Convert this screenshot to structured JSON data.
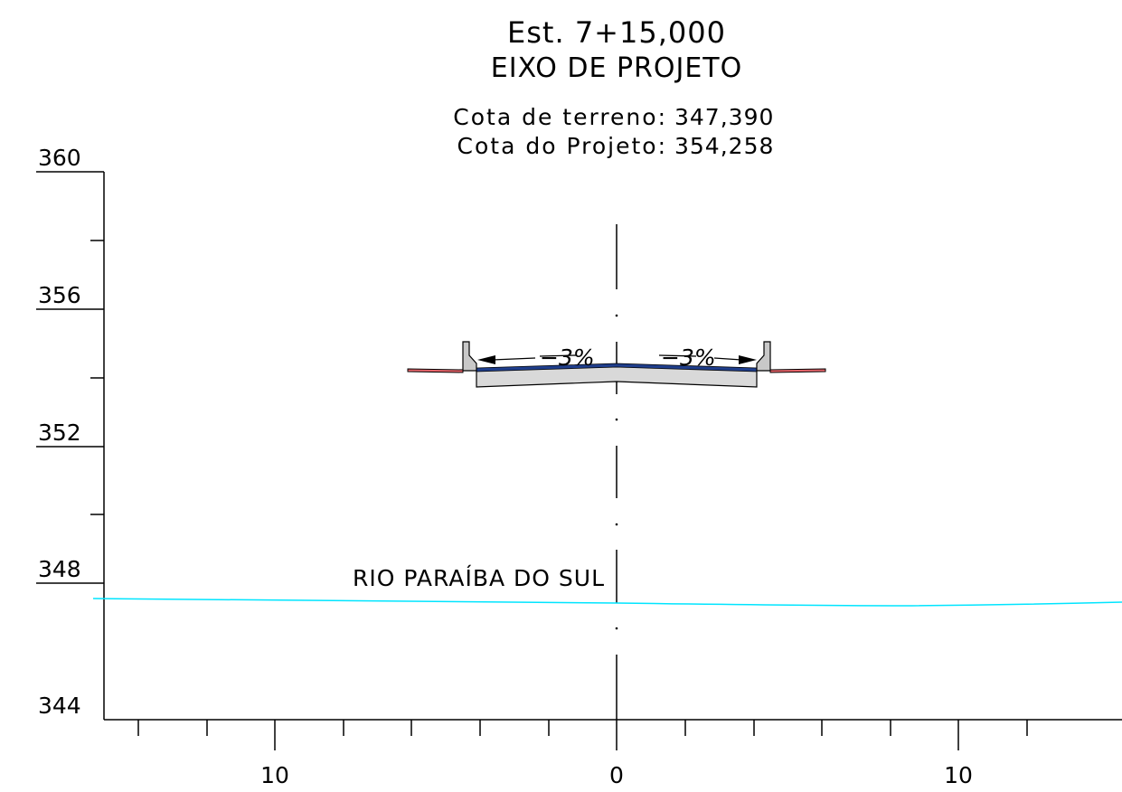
{
  "header": {
    "station": "Est. 7+15,000",
    "axis_title": "EIXO DE PROJETO",
    "terrain_label": "Cota de terreno:",
    "terrain_value": "347,390",
    "project_label": "Cota do Projeto:",
    "project_value": "354,258"
  },
  "y_axis": {
    "labels": [
      "360",
      "356",
      "352",
      "348",
      "344"
    ],
    "range": [
      344,
      360
    ]
  },
  "x_axis": {
    "labels": [
      "10",
      "0",
      "10"
    ],
    "range": [
      -15,
      15
    ]
  },
  "slopes": {
    "left": "3%",
    "right": "3%"
  },
  "river": {
    "name": "RIO PARAÍBA DO SUL",
    "color": "#00e5ff"
  },
  "colors": {
    "pavement_surface": "#1f3e8c",
    "pavement_body": "#d9d9d9",
    "barrier": "#c8c8c8",
    "slope_edge": "#e8656b"
  }
}
